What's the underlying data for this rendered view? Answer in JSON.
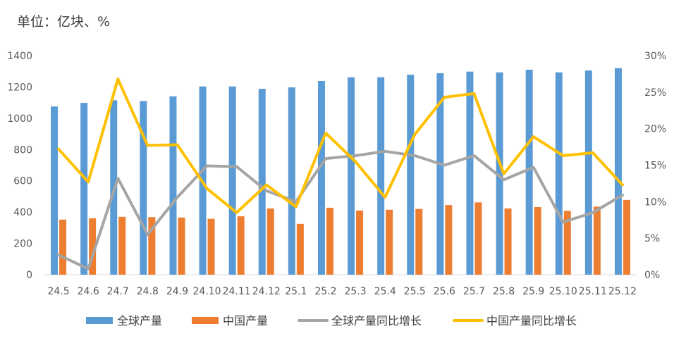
{
  "unit_label": "单位：亿块、%",
  "colors": {
    "global_output": "#5B9BD5",
    "china_output": "#ED7D31",
    "global_yoy": "#A5A5A5",
    "china_yoy": "#FFC000",
    "axis_text": "#595959",
    "axis_line": "#D9D9D9"
  },
  "chart_data": {
    "type": "bar",
    "title": "",
    "categories": [
      "24.5",
      "24.6",
      "24.7",
      "24.8",
      "24.9",
      "24.10",
      "24.11",
      "24.12",
      "25.1",
      "25.2",
      "25.3",
      "25.4",
      "25.5",
      "25.6",
      "25.7",
      "25.8",
      "25.9",
      "25.10",
      "25.11",
      "25.12"
    ],
    "y_left": {
      "ylim": [
        0,
        1400
      ],
      "ticks": [
        0,
        200,
        400,
        600,
        800,
        1000,
        1200,
        1400
      ]
    },
    "y_right": {
      "ylim": [
        0,
        30
      ],
      "ticks": [
        "0%",
        "5%",
        "10%",
        "15%",
        "20%",
        "25%",
        "30%"
      ]
    },
    "grid": false,
    "legend_position": "bottom",
    "series": [
      {
        "name": "全球产量",
        "type": "bar",
        "axis": "left",
        "values": [
          1075,
          1098,
          1115,
          1110,
          1140,
          1203,
          1203,
          1188,
          1197,
          1238,
          1262,
          1262,
          1278,
          1288,
          1298,
          1293,
          1310,
          1293,
          1305,
          1320
        ]
      },
      {
        "name": "中国产量",
        "type": "bar",
        "axis": "left",
        "values": [
          352,
          360,
          370,
          368,
          365,
          357,
          373,
          423,
          325,
          428,
          410,
          415,
          420,
          445,
          462,
          423,
          432,
          408,
          435,
          478
        ]
      },
      {
        "name": "全球产量同比增长",
        "type": "line",
        "axis": "right",
        "values": [
          2.7,
          0.8,
          13.2,
          5.5,
          10.6,
          14.9,
          14.8,
          11.5,
          10.0,
          15.9,
          16.3,
          16.9,
          16.3,
          15.0,
          16.3,
          13.0,
          14.7,
          7.2,
          8.5,
          10.9
        ]
      },
      {
        "name": "中国产量同比增长",
        "type": "line",
        "axis": "right",
        "values": [
          17.2,
          12.7,
          26.8,
          17.7,
          17.8,
          11.8,
          8.5,
          12.3,
          9.3,
          19.4,
          15.5,
          10.6,
          19.2,
          24.3,
          24.8,
          13.8,
          18.9,
          16.3,
          16.7,
          12.3
        ]
      }
    ]
  }
}
